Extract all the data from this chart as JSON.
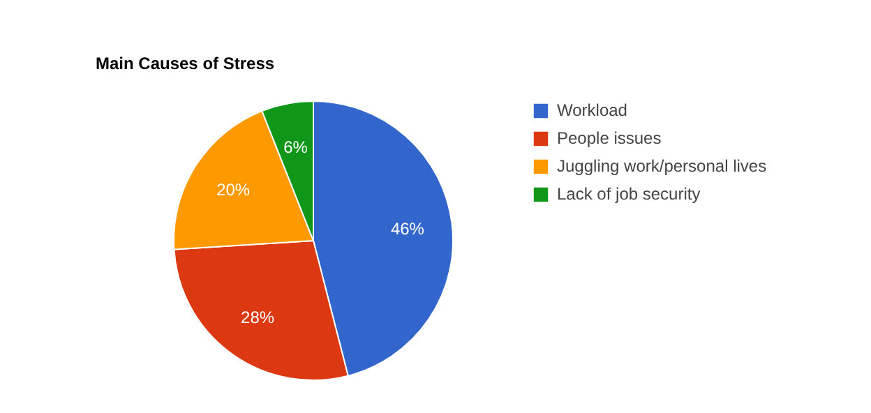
{
  "chart_data": {
    "type": "pie",
    "title": "Main Causes of Stress",
    "categories": [
      "Workload",
      "People issues",
      "Juggling work/personal lives",
      "Lack of job security"
    ],
    "values": [
      46,
      28,
      20,
      6
    ],
    "colors": [
      "#3366cc",
      "#dc3912",
      "#ff9900",
      "#109618"
    ],
    "value_labels": [
      "46%",
      "28%",
      "20%",
      "6%"
    ],
    "legend": "right"
  }
}
